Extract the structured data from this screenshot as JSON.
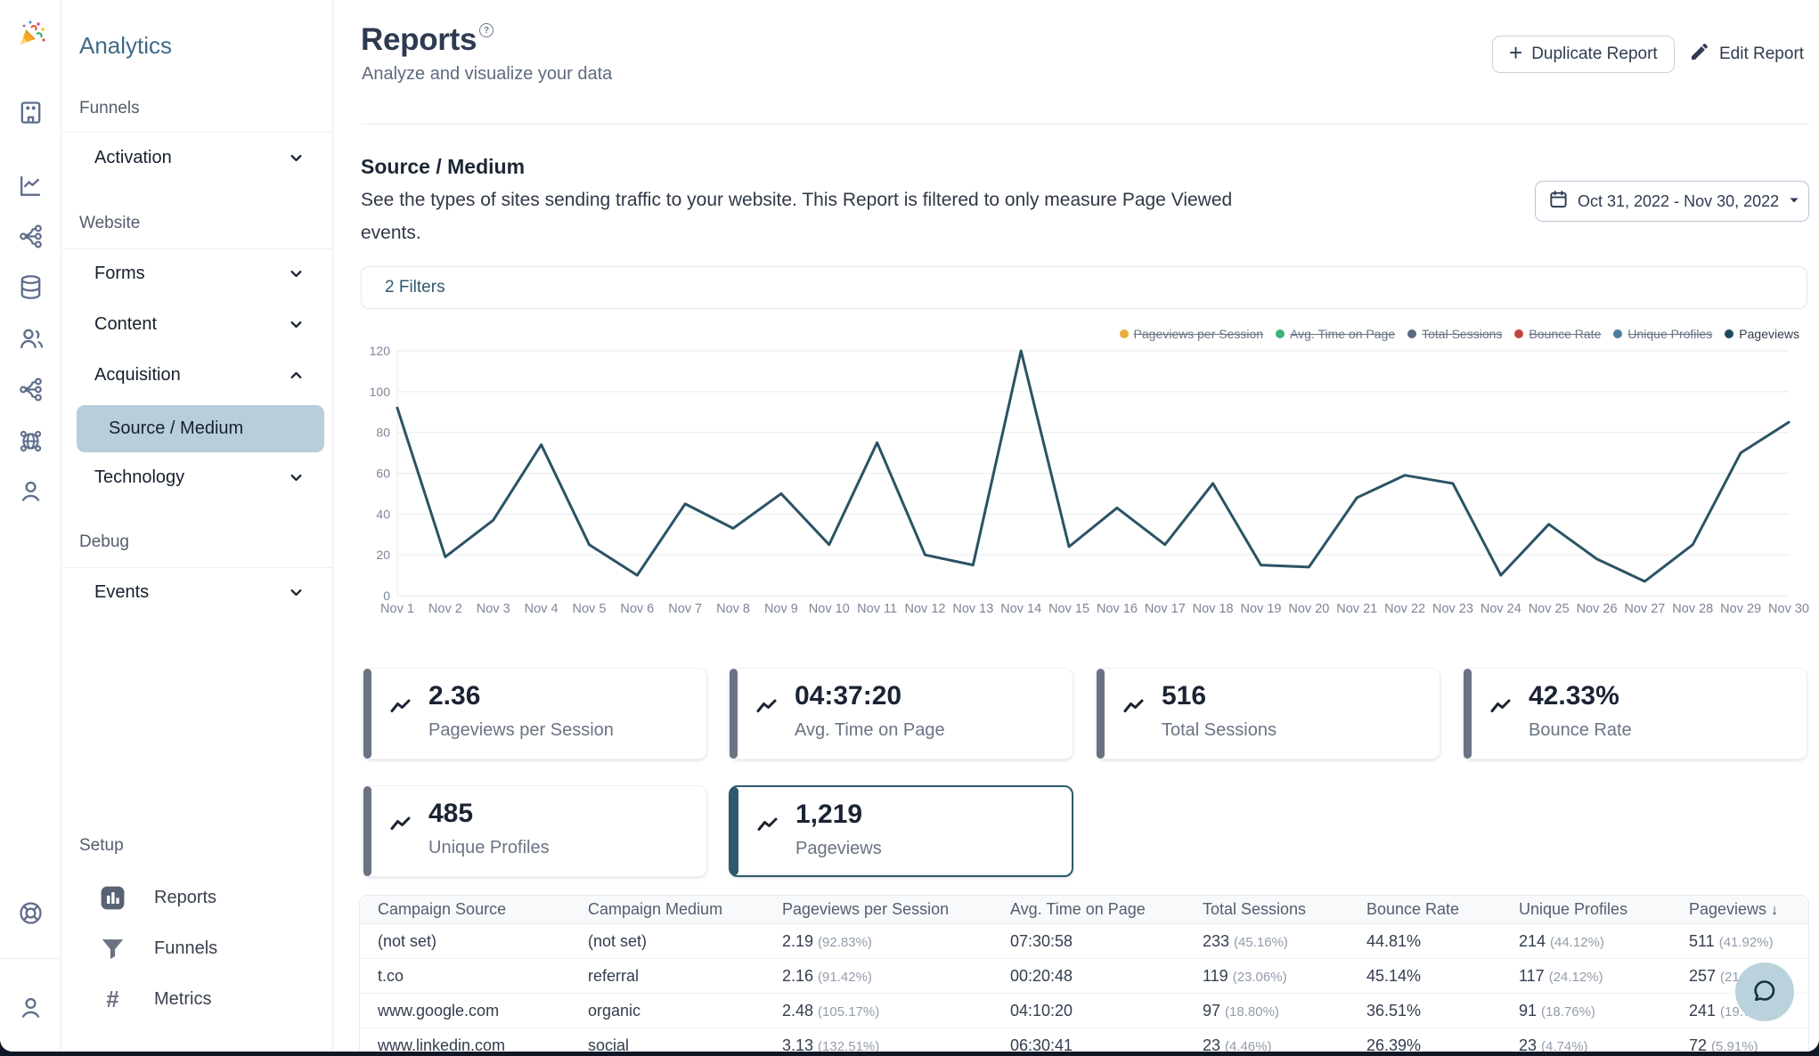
{
  "app_title": "Analytics",
  "rail": {
    "icons": [
      "building",
      "line-chart",
      "flow",
      "database",
      "users",
      "flow",
      "globe-network",
      "user",
      "life-ring",
      "user"
    ]
  },
  "sidebar": {
    "sections": [
      {
        "label": "Funnels",
        "items": [
          {
            "label": "Activation",
            "chevron": "down"
          }
        ]
      },
      {
        "label": "Website",
        "items": [
          {
            "label": "Forms",
            "chevron": "down"
          },
          {
            "label": "Content",
            "chevron": "down"
          },
          {
            "label": "Acquisition",
            "chevron": "up"
          },
          {
            "label": "Technology",
            "chevron": "down"
          }
        ]
      },
      {
        "label": "Debug",
        "items": [
          {
            "label": "Events",
            "chevron": "down"
          }
        ]
      }
    ],
    "selected_subitem": "Source / Medium",
    "setup": {
      "label": "Setup",
      "items": [
        {
          "label": "Reports",
          "icon": "bar-chart",
          "active": true
        },
        {
          "label": "Funnels",
          "icon": "funnel"
        },
        {
          "label": "Metrics",
          "icon": "hash"
        }
      ]
    }
  },
  "header": {
    "title": "Reports",
    "subtitle": "Analyze and visualize your data",
    "duplicate_label": "Duplicate Report",
    "edit_label": "Edit Report"
  },
  "report": {
    "title": "Source / Medium",
    "description": "See the types of sites sending traffic to your website. This Report is filtered to only measure Page Viewed events.",
    "date_range": "Oct 31, 2022 - Nov 30, 2022",
    "filters_label": "2 Filters"
  },
  "chart_data": {
    "type": "line",
    "x": [
      "Nov 1",
      "Nov 2",
      "Nov 3",
      "Nov 4",
      "Nov 5",
      "Nov 6",
      "Nov 7",
      "Nov 8",
      "Nov 9",
      "Nov 10",
      "Nov 11",
      "Nov 12",
      "Nov 13",
      "Nov 14",
      "Nov 15",
      "Nov 16",
      "Nov 17",
      "Nov 18",
      "Nov 19",
      "Nov 20",
      "Nov 21",
      "Nov 22",
      "Nov 23",
      "Nov 24",
      "Nov 25",
      "Nov 26",
      "Nov 27",
      "Nov 28",
      "Nov 29",
      "Nov 30"
    ],
    "series": [
      {
        "name": "Pageviews",
        "values": [
          92,
          19,
          37,
          74,
          25,
          10,
          45,
          33,
          50,
          25,
          75,
          20,
          15,
          120,
          24,
          43,
          25,
          55,
          15,
          14,
          48,
          59,
          55,
          10,
          35,
          18,
          7,
          25,
          70,
          85
        ]
      }
    ],
    "ylim": [
      0,
      120
    ],
    "yticks": [
      0,
      20,
      40,
      60,
      80,
      100,
      120
    ],
    "grid": true,
    "line_color": "#2b5365",
    "legend_position": "top-right",
    "legend": [
      {
        "label": "Pageviews per Session",
        "color": "#e8ae3c",
        "struck": true
      },
      {
        "label": "Avg. Time on Page",
        "color": "#3cb179",
        "struck": true
      },
      {
        "label": "Total Sessions",
        "color": "#5c6b80",
        "struck": true
      },
      {
        "label": "Bounce Rate",
        "color": "#bf4740",
        "struck": true
      },
      {
        "label": "Unique Profiles",
        "color": "#4e7e9d",
        "struck": true
      },
      {
        "label": "Pageviews",
        "color": "#1d4a5e",
        "struck": false
      }
    ]
  },
  "metric_cards": [
    {
      "value": "2.36",
      "label": "Pageviews per Session",
      "selected": false
    },
    {
      "value": "04:37:20",
      "label": "Avg. Time on Page",
      "selected": false
    },
    {
      "value": "516",
      "label": "Total Sessions",
      "selected": false
    },
    {
      "value": "42.33%",
      "label": "Bounce Rate",
      "selected": false
    },
    {
      "value": "485",
      "label": "Unique Profiles",
      "selected": false
    },
    {
      "value": "1,219",
      "label": "Pageviews",
      "selected": true
    }
  ],
  "table": {
    "columns": [
      "Campaign Source",
      "Campaign Medium",
      "Pageviews per Session",
      "Avg. Time on Page",
      "Total Sessions",
      "Bounce Rate",
      "Unique Profiles",
      "Pageviews"
    ],
    "sorted_column": "Pageviews",
    "rows": [
      {
        "source": "(not set)",
        "medium": "(not set)",
        "pps": "2.19",
        "pps_pct": "(92.83%)",
        "time": "07:30:58",
        "sessions": "233",
        "sessions_pct": "(45.16%)",
        "bounce": "44.81%",
        "profiles": "214",
        "profiles_pct": "(44.12%)",
        "pageviews": "511",
        "pageviews_pct": "(41.92%)"
      },
      {
        "source": "t.co",
        "medium": "referral",
        "pps": "2.16",
        "pps_pct": "(91.42%)",
        "time": "00:20:48",
        "sessions": "119",
        "sessions_pct": "(23.06%)",
        "bounce": "45.14%",
        "profiles": "117",
        "profiles_pct": "(24.12%)",
        "pageviews": "257",
        "pageviews_pct": "(21.08%)"
      },
      {
        "source": "www.google.com",
        "medium": "organic",
        "pps": "2.48",
        "pps_pct": "(105.17%)",
        "time": "04:10:20",
        "sessions": "97",
        "sessions_pct": "(18.80%)",
        "bounce": "36.51%",
        "profiles": "91",
        "profiles_pct": "(18.76%)",
        "pageviews": "241",
        "pageviews_pct": "(19.77%)"
      },
      {
        "source": "www.linkedin.com",
        "medium": "social",
        "pps": "3.13",
        "pps_pct": "(132.51%)",
        "time": "06:30:41",
        "sessions": "23",
        "sessions_pct": "(4.46%)",
        "bounce": "26.39%",
        "profiles": "23",
        "profiles_pct": "(4.74%)",
        "pageviews": "72",
        "pageviews_pct": "(5.91%)"
      }
    ]
  },
  "colors": {
    "accent_teal": "#2d5a6c",
    "selected_nav_bg": "#b8cedb",
    "sidebar_title": "#3f6b87",
    "bubble_bg": "#b9d2dc"
  }
}
